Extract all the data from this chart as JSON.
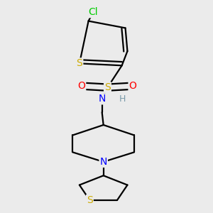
{
  "background_color": "#ebebeb",
  "atom_colors": {
    "C": "#000000",
    "H": "#7a9aaa",
    "N": "#0000ff",
    "O": "#ff0000",
    "S": "#ccaa00",
    "Cl": "#00cc00"
  },
  "bond_color": "#000000",
  "bond_width": 1.6,
  "font_size_atom": 10,
  "figsize": [
    3.0,
    3.0
  ],
  "dpi": 100
}
